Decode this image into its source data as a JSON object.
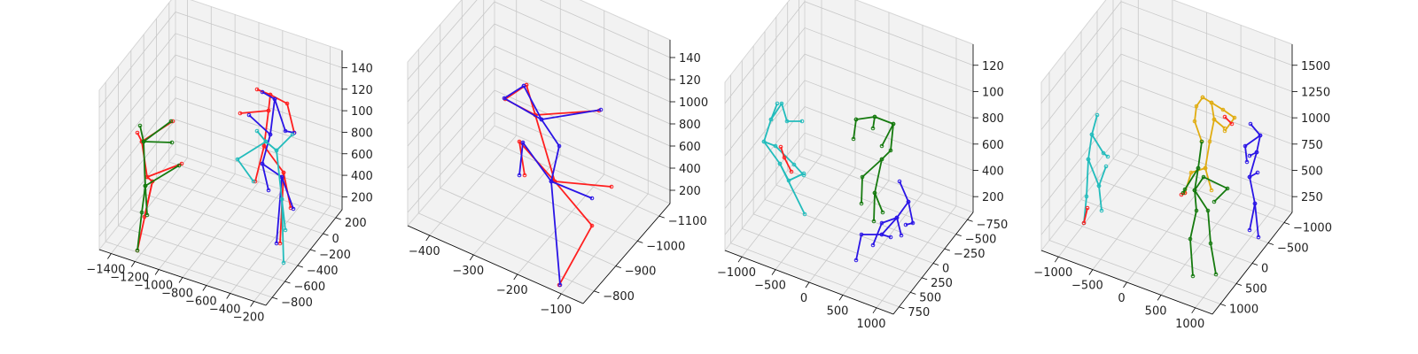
{
  "colors": {
    "red": "#ff1f1f",
    "blue": "#2a14e6",
    "green": "#157a0e",
    "cyan": "#22bcbc",
    "yellow": "#e0ac10",
    "pane": "#f2f2f2",
    "pane_edge": "#d6d6d6",
    "grid": "#c8c8c8",
    "axis": "#000000"
  },
  "chart_data": [
    {
      "type": "scatter",
      "subtype": "3d-pose-skeletons",
      "title": "",
      "xlabel": "",
      "ylabel": "",
      "zlabel": "",
      "xlim": [
        -1450,
        -150
      ],
      "ylim": [
        -900,
        350
      ],
      "zlim": [
        0,
        1600
      ],
      "x_ticks": [
        "−1400",
        "−1200",
        "−1000",
        "−800",
        "−600",
        "−400",
        "−200"
      ],
      "y_ticks": [
        "−800",
        "−600",
        "−400",
        "−200",
        "0",
        "200"
      ],
      "z_ticks": [
        "200",
        "400",
        "600",
        "800",
        "100",
        "120",
        "140"
      ],
      "grid": true,
      "series": [
        {
          "color": "red",
          "skeletons": 2
        },
        {
          "color": "green",
          "skeletons": 1
        },
        {
          "color": "blue",
          "skeletons": 1
        },
        {
          "color": "cyan",
          "skeletons": 1
        }
      ]
    },
    {
      "type": "scatter",
      "subtype": "3d-pose-skeletons",
      "title": "",
      "xlabel": "",
      "ylabel": "",
      "zlabel": "",
      "xlim": [
        -430,
        -30
      ],
      "ylim": [
        -1150,
        -750
      ],
      "zlim": [
        0,
        1600
      ],
      "x_ticks": [
        "−400",
        "−300",
        "−200",
        "−100"
      ],
      "y_ticks": [
        "−800",
        "−900",
        "−1000",
        "−1100"
      ],
      "z_ticks": [
        "200",
        "400",
        "600",
        "800",
        "1000",
        "120",
        "140"
      ],
      "grid": true,
      "series": [
        {
          "color": "red",
          "skeletons": 1
        },
        {
          "color": "blue",
          "skeletons": 1
        }
      ]
    },
    {
      "type": "scatter",
      "subtype": "3d-pose-skeletons",
      "title": "",
      "xlabel": "",
      "ylabel": "",
      "zlabel": "",
      "xlim": [
        -1100,
        1100
      ],
      "ylim": [
        -850,
        850
      ],
      "zlim": [
        0,
        1400
      ],
      "x_ticks": [
        "−1000",
        "−500",
        "0",
        "500",
        "1000"
      ],
      "y_ticks": [
        "750",
        "500",
        "250",
        "0",
        "−250",
        "−500",
        "−750"
      ],
      "z_ticks": [
        "200",
        "400",
        "600",
        "800",
        "100",
        "120"
      ],
      "grid": true,
      "series": [
        {
          "color": "cyan",
          "skeletons": 1
        },
        {
          "color": "red",
          "skeletons": 1
        },
        {
          "color": "green",
          "skeletons": 1
        },
        {
          "color": "blue",
          "skeletons": 1
        }
      ]
    },
    {
      "type": "scatter",
      "subtype": "3d-pose-skeletons",
      "title": "",
      "xlabel": "",
      "ylabel": "",
      "zlabel": "",
      "xlim": [
        -1100,
        1100
      ],
      "ylim": [
        -1100,
        1100
      ],
      "zlim": [
        0,
        1800
      ],
      "x_ticks": [
        "−1000",
        "−500",
        "0",
        "500",
        "1000"
      ],
      "y_ticks": [
        "1000",
        "500",
        "0",
        "−500",
        "−1000"
      ],
      "z_ticks": [
        "250",
        "500",
        "750",
        "1000",
        "1250",
        "1500"
      ],
      "grid": true,
      "series": [
        {
          "color": "cyan",
          "skeletons": 1
        },
        {
          "color": "red",
          "skeletons": 2
        },
        {
          "color": "yellow",
          "skeletons": 1
        },
        {
          "color": "green",
          "skeletons": 1
        },
        {
          "color": "blue",
          "skeletons": 1
        }
      ]
    }
  ]
}
